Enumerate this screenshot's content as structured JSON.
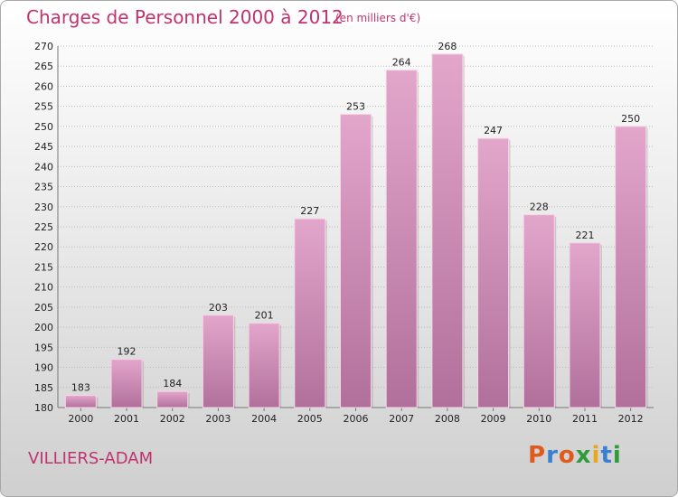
{
  "header": {
    "title": "Charges de Personnel 2000 à 2012",
    "subtitle": "(en milliers d'€)"
  },
  "footer": {
    "city": "VILLIERS-ADAM",
    "logo": "Proxiti"
  },
  "colors": {
    "title": "#c0336f",
    "bar_top": "#e3a6cb",
    "bar_bottom": "#b0709b",
    "logo_letters": [
      "#e05a1e",
      "#3a7fd0",
      "#e05a1e",
      "#2f9b3a",
      "#e8a81a",
      "#3a7fd0",
      "#2f9b3a"
    ]
  },
  "chart_data": {
    "type": "bar",
    "title": "Charges de Personnel 2000 à 2012",
    "subtitle": "(en milliers d'€)",
    "categories": [
      "2000",
      "2001",
      "2002",
      "2003",
      "2004",
      "2005",
      "2006",
      "2007",
      "2008",
      "2009",
      "2010",
      "2011",
      "2012"
    ],
    "values": [
      183,
      192,
      184,
      203,
      201,
      227,
      253,
      264,
      268,
      247,
      228,
      221,
      250
    ],
    "ylim": [
      180,
      270
    ],
    "yticks": [
      180,
      185,
      190,
      195,
      200,
      205,
      210,
      215,
      220,
      225,
      230,
      235,
      240,
      245,
      250,
      255,
      260,
      265,
      270
    ],
    "grid": true,
    "data_labels": true,
    "xlabel": "",
    "ylabel": ""
  }
}
